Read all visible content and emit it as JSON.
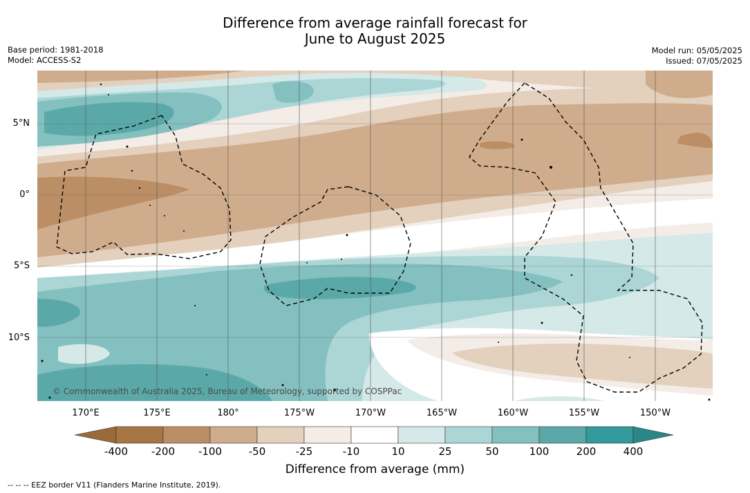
{
  "title_line1": "Difference from average rainfall forecast for",
  "title_line2": "June to August 2025",
  "base_period": "Base period: 1981-2018",
  "model": "Model: ACCESS-S2",
  "model_run": "Model run: 05/05/2025",
  "issued": "Issued: 07/05/2025",
  "lat_labels": [
    "5°N",
    "0°",
    "5°S",
    "10°S"
  ],
  "lon_labels": [
    "170°E",
    "175°E",
    "180°",
    "175°W",
    "170°W",
    "165°W",
    "160°W",
    "155°W",
    "150°W"
  ],
  "copyright": "© Commonwealth of Australia 2025, Bureau of Meteorology, supported by COSPPac",
  "colorbar": {
    "ticks": [
      "-400",
      "-200",
      "-100",
      "-50",
      "-25",
      "-10",
      "10",
      "25",
      "50",
      "100",
      "200",
      "400"
    ],
    "colors": [
      "#a87642",
      "#bb8e65",
      "#cfad8c",
      "#e3d0bd",
      "#f4ece6",
      "#ffffff",
      "#d4e9e8",
      "#abd6d5",
      "#83c0bf",
      "#5aa9a8",
      "#33999a"
    ],
    "under_color": "#9a6a3a",
    "over_color": "#2a8786",
    "label": "Difference from average (mm)"
  },
  "eez_note": "--  --  -- EEZ border V11 (Flanders Marine Institute, 2019)."
}
